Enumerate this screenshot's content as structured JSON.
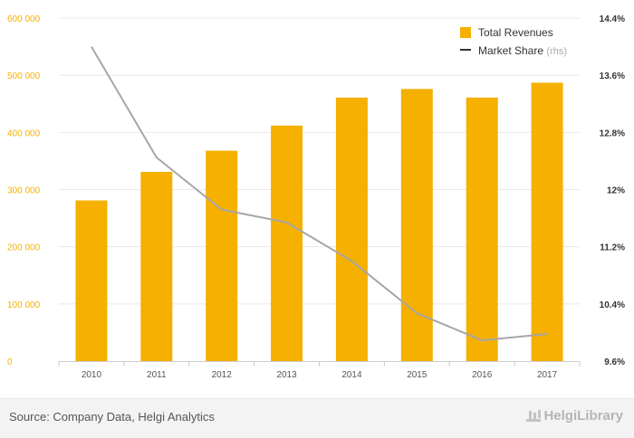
{
  "chart_data": {
    "type": "bar",
    "categories": [
      "2010",
      "2011",
      "2012",
      "2013",
      "2014",
      "2015",
      "2016",
      "2017"
    ],
    "series": [
      {
        "name": "Total Revenues",
        "type": "bar",
        "axis": "left",
        "color": "#f5b000",
        "values": [
          281000,
          331000,
          368000,
          412000,
          461000,
          476000,
          461000,
          487000
        ]
      },
      {
        "name": "Market Share",
        "name_suffix": "(rhs)",
        "type": "line",
        "axis": "right",
        "color": "#a6a6a6",
        "values": [
          14.0,
          12.45,
          11.72,
          11.54,
          11.0,
          10.27,
          9.89,
          9.98
        ]
      }
    ],
    "y_left": {
      "min": 0,
      "max": 600000,
      "ticks": [
        0,
        100000,
        200000,
        300000,
        400000,
        500000,
        600000
      ],
      "tick_labels": [
        "0",
        "100 000",
        "200 000",
        "300 000",
        "400 000",
        "500 000",
        "600 000"
      ],
      "color": "#f5b000"
    },
    "y_right": {
      "min": 9.6,
      "max": 14.4,
      "ticks": [
        9.6,
        10.4,
        11.2,
        12.0,
        12.8,
        13.6,
        14.4
      ],
      "tick_labels": [
        "9.6%",
        "10.4%",
        "11.2%",
        "12%",
        "12.8%",
        "13.6%",
        "14.4%"
      ]
    },
    "grid": true,
    "legend_position": "top-right"
  },
  "footer": {
    "source": "Source: Company Data, Helgi Analytics",
    "brand": "HelgiLibrary"
  }
}
